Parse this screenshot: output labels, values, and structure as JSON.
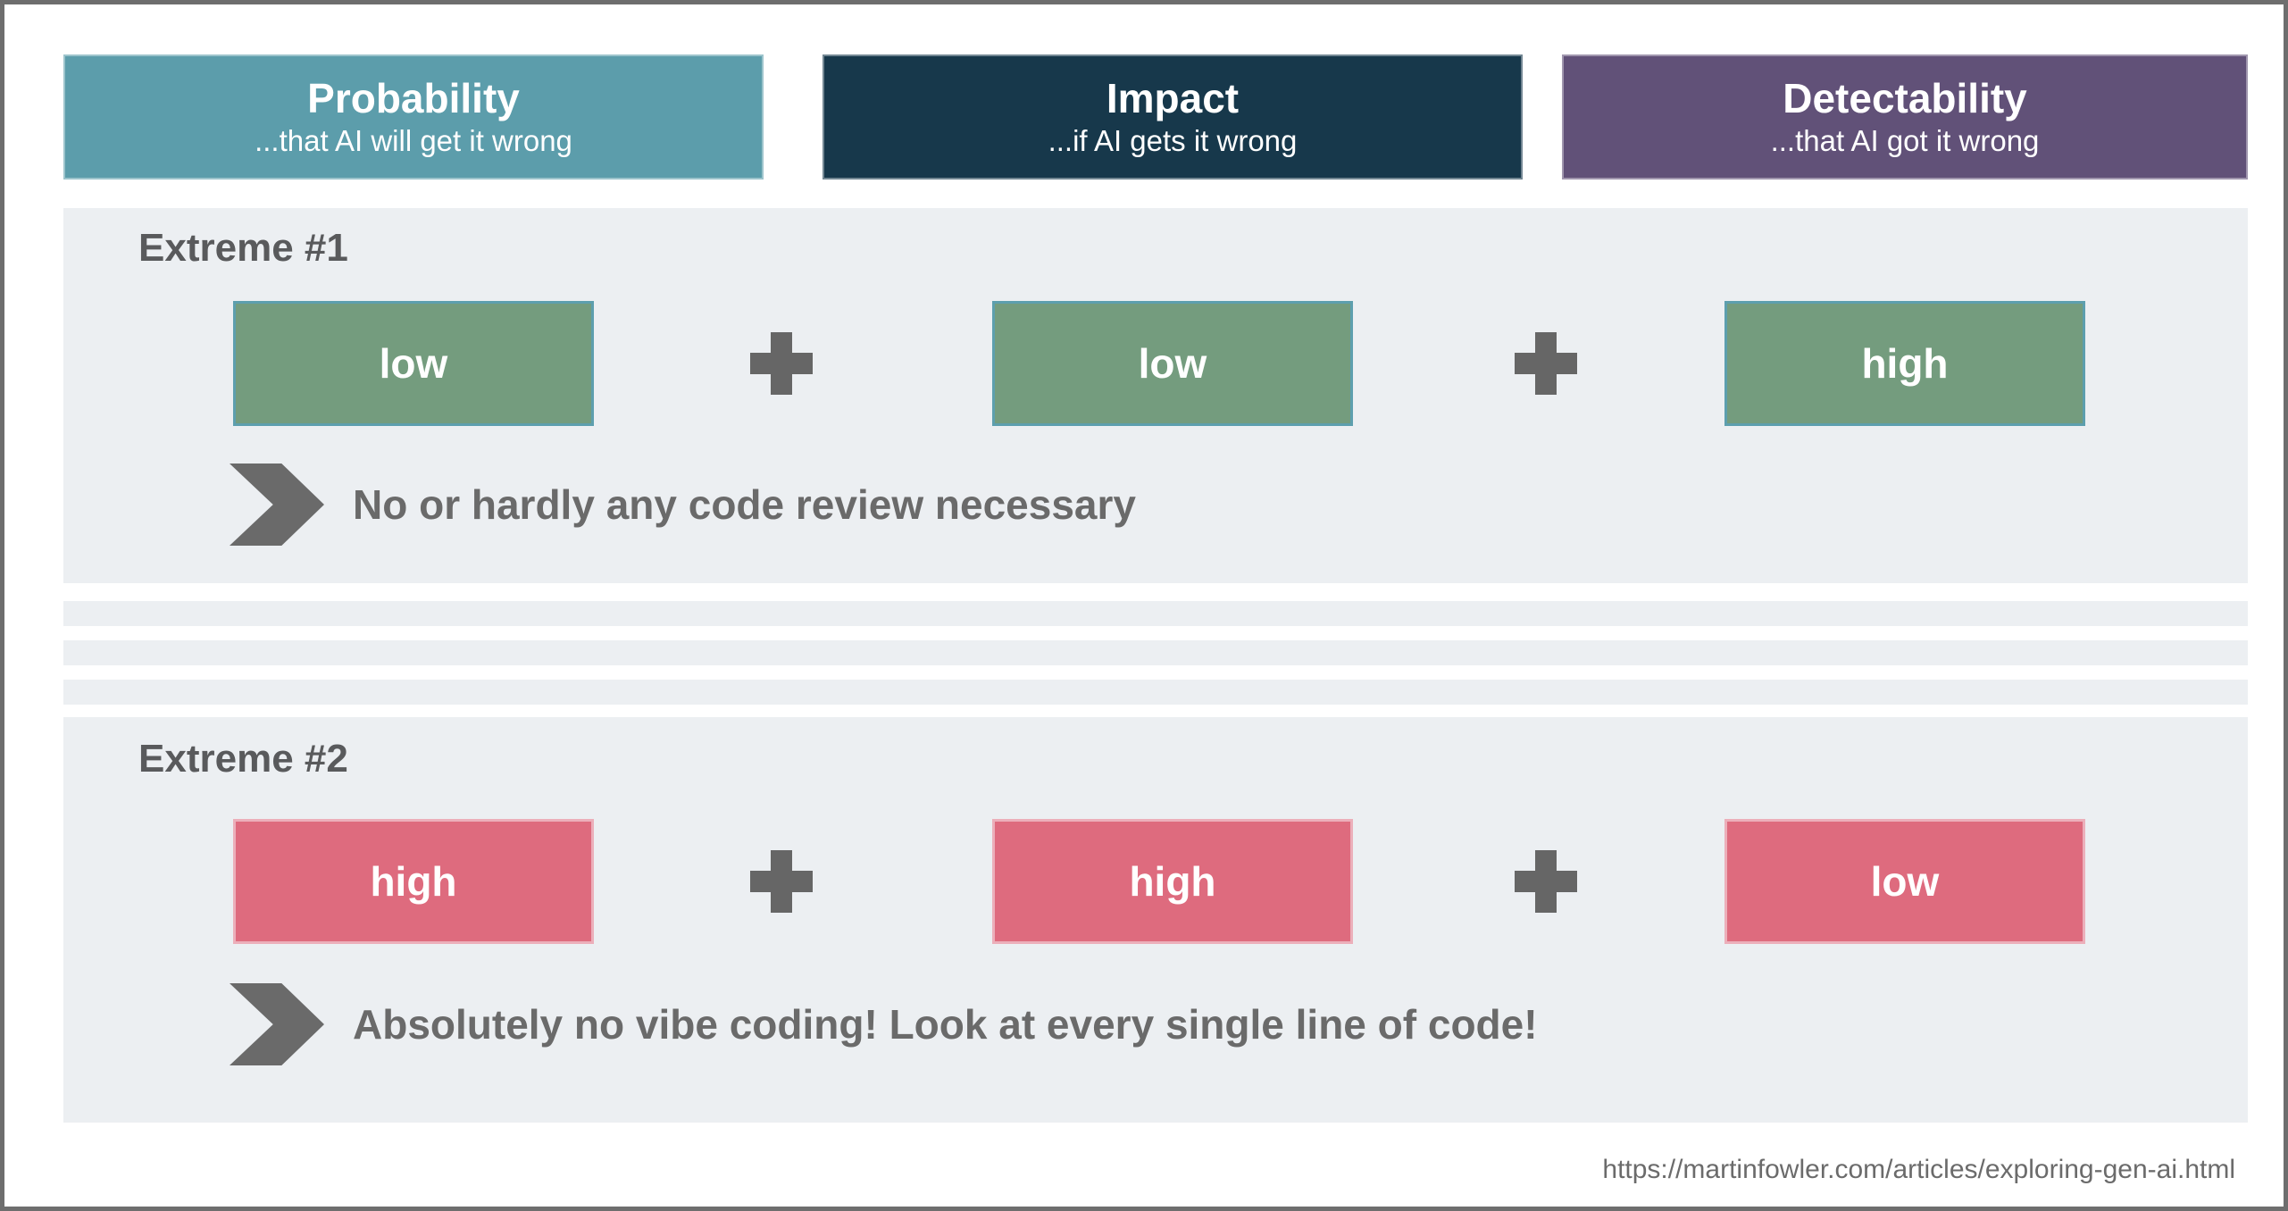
{
  "columns": [
    {
      "title": "Probability",
      "subtitle": "...that AI will get it wrong",
      "color": "#5C9DAB"
    },
    {
      "title": "Impact",
      "subtitle": "...if AI gets it wrong",
      "color": "#17384B"
    },
    {
      "title": "Detectability",
      "subtitle": "...that AI got it wrong",
      "color": "#615178"
    }
  ],
  "rows": [
    {
      "label": "Extreme #1",
      "values": [
        "low",
        "low",
        "high"
      ],
      "level_color": "#749C7E",
      "level_border": "#5D9FAE",
      "conclusion": "No or hardly any code review necessary"
    },
    {
      "label": "Extreme #2",
      "values": [
        "high",
        "high",
        "low"
      ],
      "level_color": "#DE6B7E",
      "level_border": "#ECAFBA",
      "conclusion": "Absolutely no vibe coding! Look at every single line of code!"
    }
  ],
  "footer": {
    "source_url": "https://martinfowler.com/articles/exploring-gen-ai.html"
  },
  "colors": {
    "panel_bg": "#ECEFF2",
    "icon_gray": "#666666",
    "arrow_gray": "#6A6A6A",
    "frame_border": "#6E6E6E"
  }
}
